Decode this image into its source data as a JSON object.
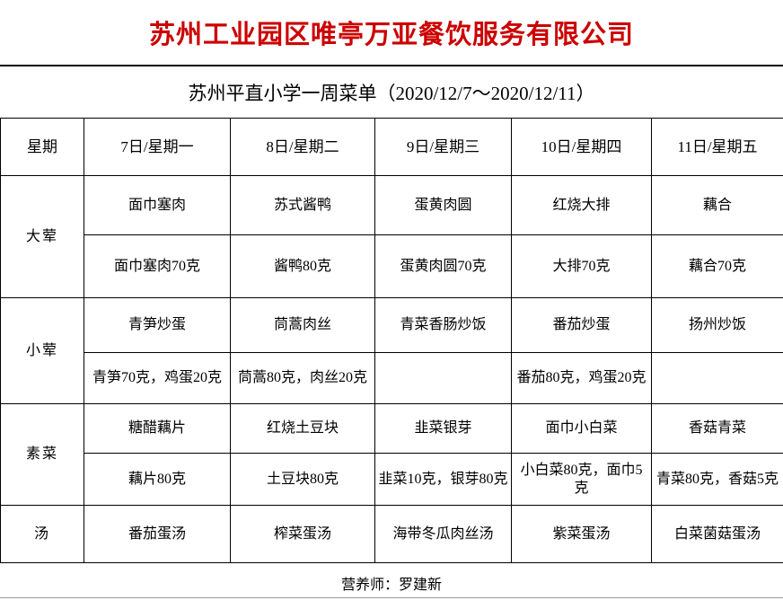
{
  "title": "苏州工业园区唯亭万亚餐饮服务有限公司",
  "subtitle": "苏州平直小学一周菜单（2020/12/7～2020/12/11）",
  "colors": {
    "title_red": "#cc0000",
    "border_black": "#000000"
  },
  "table": {
    "header": [
      "星期",
      "7日/星期一",
      "8日/星期二",
      "9日/星期三",
      "10日/星期四",
      "11日/星期五"
    ],
    "rows": [
      {
        "label": "大荤",
        "dishes": [
          "面巾塞肉",
          "苏式酱鸭",
          "蛋黄肉圆",
          "红烧大排",
          "藕合"
        ],
        "weights": [
          "面巾塞肉70克",
          "酱鸭80克",
          "蛋黄肉圆70克",
          "大排70克",
          "藕合70克"
        ]
      },
      {
        "label": "小荤",
        "dishes": [
          "青笋炒蛋",
          "茼蒿肉丝",
          "青菜香肠炒饭",
          "番茄炒蛋",
          "扬州炒饭"
        ],
        "weights": [
          "青笋70克，鸡蛋20克",
          "茼蒿80克，肉丝20克",
          "",
          "番茄80克，鸡蛋20克",
          ""
        ]
      },
      {
        "label": "素菜",
        "dishes": [
          "糖醋藕片",
          "红烧土豆块",
          "韭菜银芽",
          "面巾小白菜",
          "香菇青菜"
        ],
        "weights": [
          "藕片80克",
          "土豆块80克",
          "韭菜10克，银芽80克",
          "小白菜80克，面巾5克",
          "青菜80克，香菇5克"
        ]
      },
      {
        "label": "汤",
        "soups": [
          "番茄蛋汤",
          "榨菜蛋汤",
          "海带冬瓜肉丝汤",
          "紫菜蛋汤",
          "白菜菌菇蛋汤"
        ]
      }
    ]
  },
  "footer": {
    "nutritionist": "营养师：罗建新"
  }
}
